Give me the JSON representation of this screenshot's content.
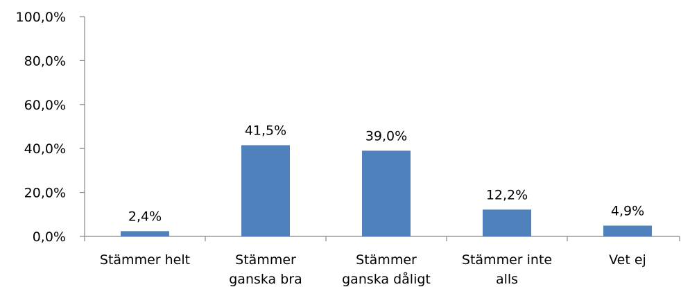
{
  "chart_data": {
    "type": "bar",
    "categories": [
      [
        "Stämmer helt"
      ],
      [
        "Stämmer",
        "ganska bra"
      ],
      [
        "Stämmer",
        "ganska dåligt"
      ],
      [
        "Stämmer inte",
        "alls"
      ],
      [
        "Vet ej"
      ]
    ],
    "values": [
      2.4,
      41.5,
      39.0,
      12.2,
      4.9
    ],
    "data_labels": [
      "2,4%",
      "41,5%",
      "39,0%",
      "12,2%",
      "4,9%"
    ],
    "ylim": [
      0,
      100
    ],
    "yticks": [
      0,
      20,
      40,
      60,
      80,
      100
    ],
    "ytick_labels": [
      "0,0%",
      "20,0%",
      "40,0%",
      "60,0%",
      "80,0%",
      "100,0%"
    ],
    "grid": false,
    "legend": "none",
    "bar_color": "#4F81BD",
    "axis_color": "#868686"
  }
}
